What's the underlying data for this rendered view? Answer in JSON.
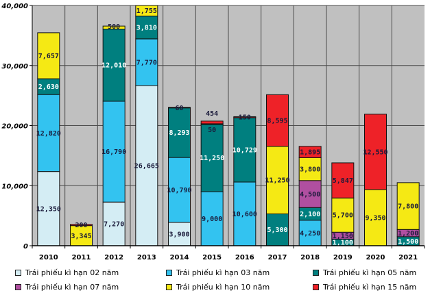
{
  "chart_data": {
    "type": "bar",
    "stacked": true,
    "title": "",
    "xlabel": "",
    "ylabel": "",
    "ylim": [
      0,
      40000
    ],
    "yticks": [
      0,
      10000,
      20000,
      30000,
      40000
    ],
    "ytick_labels": [
      "0",
      "10,000",
      "20,000",
      "30,000",
      "40,000"
    ],
    "grid": true,
    "legend_position": "bottom",
    "categories": [
      "2010",
      "2011",
      "2012",
      "2013",
      "2014",
      "2015",
      "2016",
      "2017",
      "2018",
      "2019",
      "2020",
      "2021"
    ],
    "series": [
      {
        "name": "Trái phiếu kì hạn 02 năm",
        "color": "#d4edf4",
        "label_color": "#1a1a3a",
        "values": [
          12350,
          0,
          7270,
          26665,
          3900,
          0,
          0,
          0,
          0,
          0,
          0,
          0
        ],
        "labels": [
          "12,350",
          "",
          "7,270",
          "26,665",
          "3,900",
          "",
          "",
          "",
          "",
          "",
          "",
          ""
        ]
      },
      {
        "name": "Trái phiếu kì hạn 03 năm",
        "color": "#33c3f0",
        "label_color": "#1a1a3a",
        "values": [
          12820,
          0,
          16790,
          7770,
          10790,
          9000,
          10600,
          0,
          4250,
          0,
          0,
          0
        ],
        "labels": [
          "12,820",
          "",
          "16,790",
          "7,770",
          "10,790",
          "9,000",
          "10,600",
          "",
          "4,250",
          "",
          "",
          ""
        ]
      },
      {
        "name": "Trái phiếu kì hạn 05 năm",
        "color": "#007f7f",
        "label_color": "#ffffff",
        "values": [
          2630,
          0,
          12010,
          3810,
          8293,
          11250,
          10729,
          5300,
          2100,
          1100,
          0,
          1500
        ],
        "labels": [
          "2,630",
          "",
          "12,010",
          "3,810",
          "8,293",
          "11,250",
          "10,729",
          "5,300",
          "2,100",
          "1,100",
          "",
          "1,500"
        ]
      },
      {
        "name": "Trái phiếu kì hạn 07 năm",
        "color": "#b04fa0",
        "label_color": "#1a1a3a",
        "values": [
          0,
          0,
          0,
          0,
          0,
          0,
          0,
          0,
          4500,
          1150,
          0,
          1200
        ],
        "labels": [
          "",
          "",
          "",
          "",
          "",
          "",
          "",
          "",
          "4,500",
          "1,150",
          "",
          "1,200"
        ]
      },
      {
        "name": "Trái phiếu kì hạn 10 năm",
        "color": "#f5e914",
        "label_color": "#1a1a3a",
        "values": [
          7657,
          3345,
          500,
          1755,
          60,
          50,
          0,
          11250,
          3800,
          5700,
          9350,
          7800
        ],
        "labels": [
          "7,657",
          "3,345",
          "500",
          "1,755",
          "60",
          "50",
          "",
          "11,250",
          "3,800",
          "5,700",
          "9,350",
          "7,800"
        ]
      },
      {
        "name": "Trái phiếu kì hạn 15 năm",
        "color": "#ee2228",
        "label_color": "#1a1a3a",
        "values": [
          0,
          200,
          0,
          0,
          0,
          454,
          150,
          8595,
          1895,
          5847,
          12550,
          0
        ],
        "labels": [
          "",
          "200",
          "",
          "",
          "",
          "454",
          "150",
          "8,595",
          "1,895",
          "5,847",
          "12,550",
          ""
        ]
      }
    ]
  },
  "legend": {
    "items": [
      {
        "label": "Trái phiếu kì hạn 02 năm",
        "color": "#d4edf4"
      },
      {
        "label": "Trái phiếu kì hạn 03 năm",
        "color": "#33c3f0"
      },
      {
        "label": "Trái phiếu kì hạn 05 năm",
        "color": "#007f7f"
      },
      {
        "label": "Trái phiếu kì hạn 07 năm",
        "color": "#b04fa0"
      },
      {
        "label": "Trái phiếu kì hạn 10 năm",
        "color": "#f5e914"
      },
      {
        "label": "Trái phiếu kì hạn 15 năm",
        "color": "#ee2228"
      }
    ]
  },
  "colors": {
    "plot_background": "#c0c0c0",
    "gridline": "#4a4a4a"
  }
}
